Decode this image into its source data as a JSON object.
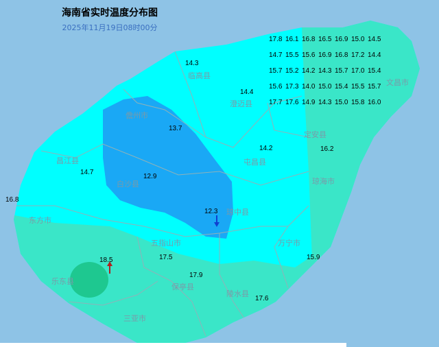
{
  "title": "海南省实时温度分布图",
  "subtitle": "2025年11月19日08时00分",
  "colors": {
    "sea": "#8ec3e6",
    "land_cold": "#00ffff",
    "blue_zone": "#1aa8f5",
    "teal_zone": "#3ae6c8",
    "warm_patch": "#1ec890",
    "arrow_down": "#1040d0",
    "arrow_up": "#b02020"
  },
  "counties": [
    "临高县",
    "澄迈县",
    "文昌市",
    "儋州市",
    "定安县",
    "昌江县",
    "屯昌县",
    "白沙县",
    "琼海市",
    "东方市",
    "琼中县",
    "五指山市",
    "万宁市",
    "乐东县",
    "保亭县",
    "陵水县",
    "三亚市"
  ],
  "stations": [
    "14.3",
    "14.4",
    "13.7",
    "14.2",
    "12.9",
    "14.7",
    "16.8",
    "12.3",
    "18.5",
    "17.5",
    "17.9",
    "17.6",
    "15.9",
    "16.2",
    "17.8",
    "16.1",
    "16.8",
    "16.5",
    "16.9",
    "15.0",
    "14.5",
    "14.7",
    "15.5",
    "15.6",
    "16.9",
    "16.8",
    "17.2",
    "14.4",
    "15.7",
    "15.2",
    "14.2",
    "14.3",
    "15.7",
    "17.0",
    "15.4",
    "15.6",
    "17.3",
    "14.0",
    "15.0",
    "15.4",
    "15.5",
    "15.7",
    "17.7",
    "17.6",
    "14.9",
    "14.3",
    "15.0",
    "15.8",
    "16.0"
  ],
  "markers": {
    "min_icon": "arrow-down-icon",
    "max_icon": "arrow-up-icon"
  }
}
